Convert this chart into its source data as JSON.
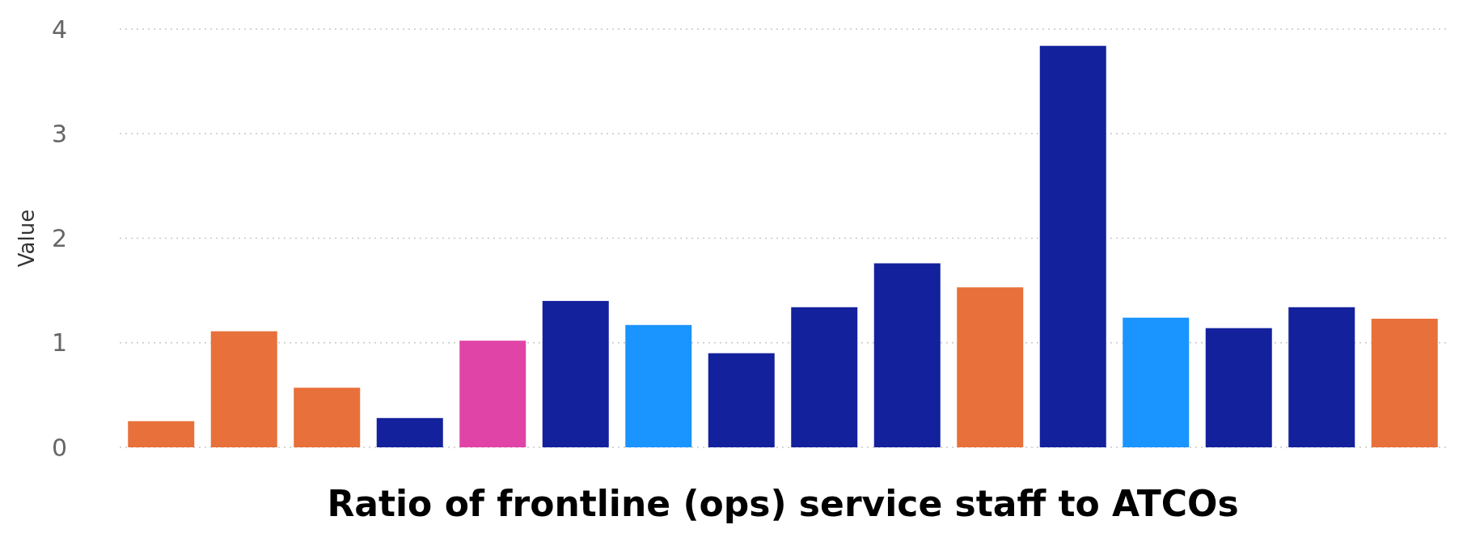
{
  "chart_data": {
    "type": "bar",
    "title": "Ratio of frontline (ops) service staff to ATCOs",
    "ylabel": "Value",
    "categories": [
      null,
      null,
      null,
      null,
      null,
      null,
      null,
      null,
      null,
      null,
      null,
      null,
      null,
      null,
      null,
      null
    ],
    "values": [
      0.25,
      1.11,
      0.57,
      0.28,
      1.02,
      1.4,
      1.17,
      0.9,
      1.34,
      1.76,
      1.53,
      3.84,
      1.24,
      1.14,
      1.34,
      1.23
    ],
    "colors": [
      "#e8703a",
      "#e8703a",
      "#e8703a",
      "#14219c",
      "#e044a7",
      "#14219c",
      "#1a94ff",
      "#14219c",
      "#14219c",
      "#14219c",
      "#e8703a",
      "#14219c",
      "#1a94ff",
      "#14219c",
      "#14219c",
      "#e8703a"
    ],
    "ylim": [
      0,
      4
    ],
    "yticks": [
      0,
      1,
      2,
      3,
      4
    ],
    "grid": "y"
  }
}
